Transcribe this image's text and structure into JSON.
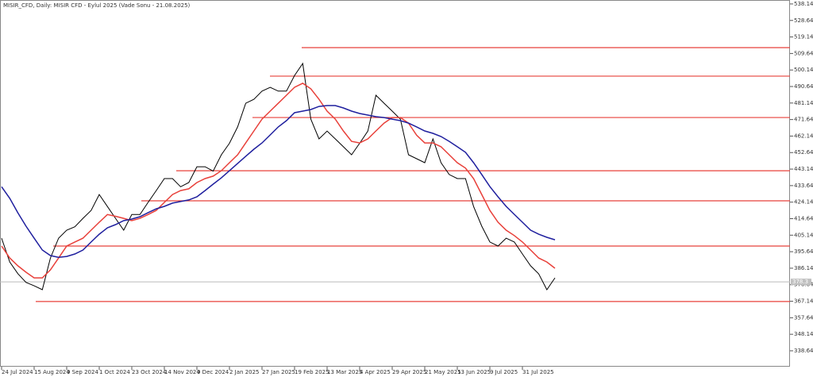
{
  "chart_data": {
    "type": "line",
    "title": "MISIR_CFD, Daily: MISIR CFD - Eylul 2025 (Vade Sonu - 21.08.2025)",
    "categories": [
      "24 Jul 2024",
      null,
      null,
      null,
      "15 Aug 2024",
      null,
      null,
      null,
      "9 Sep 2024",
      null,
      null,
      null,
      "1 Oct 2024",
      null,
      null,
      null,
      "23 Oct 2024",
      null,
      null,
      null,
      "14 Nov 2024",
      null,
      null,
      null,
      "9 Dec 2024",
      null,
      null,
      null,
      "2 Jan 2025",
      null,
      null,
      null,
      "27 Jan 2025",
      null,
      null,
      null,
      "19 Feb 2025",
      null,
      null,
      null,
      "13 Mar 2025",
      null,
      null,
      null,
      "4 Apr 2025",
      null,
      null,
      null,
      "29 Apr 2025",
      null,
      null,
      null,
      "21 May 2025",
      null,
      null,
      null,
      "13 Jun 2025",
      null,
      null,
      null,
      "9 Jul 2025",
      null,
      null,
      null,
      "31 Jul 2025",
      null,
      null,
      null,
      null
    ],
    "series": [
      {
        "color": "#000000",
        "values": [
          403.4,
          389.7,
          383,
          378,
          376,
          373.8,
          392,
          403.4,
          408,
          410,
          414.8,
          419.4,
          428.5,
          421.6,
          414.8,
          408,
          417,
          417,
          424,
          430.8,
          437.7,
          437.7,
          433,
          435.4,
          444.5,
          444.5,
          442,
          451.4,
          458,
          467.4,
          481,
          483.3,
          488,
          490.2,
          488,
          488,
          497,
          503.9,
          471.9,
          460.5,
          465,
          460.5,
          456,
          451.4,
          458,
          465,
          485.6,
          481,
          476.5,
          471.9,
          451.4,
          449.1,
          446.8,
          460.5,
          446.8,
          440,
          437.7,
          437.7,
          421.6,
          410.3,
          401.2,
          398.9,
          403.4,
          401.2,
          394.3,
          387.5,
          382.9,
          373.8,
          380.6
        ]
      },
      {
        "color": "#e8403a",
        "values": [
          398.9,
          392,
          387.5,
          383.8,
          380.6,
          380.6,
          385.2,
          392,
          398.9,
          401.2,
          403.4,
          408,
          412.6,
          417,
          416,
          414.8,
          413.5,
          414.8,
          417,
          419.4,
          424,
          428.5,
          430.8,
          431.8,
          435.4,
          437.7,
          439.1,
          442.2,
          446.8,
          451.4,
          458.2,
          465.1,
          471.9,
          476.5,
          481,
          485.6,
          490.2,
          492.5,
          489.3,
          483.3,
          476.5,
          471.9,
          465.1,
          459.1,
          458.2,
          460.5,
          465.1,
          469.6,
          472.8,
          472.8,
          469.6,
          462.6,
          458.2,
          458.2,
          456,
          451.4,
          446.8,
          443.7,
          437.7,
          428.5,
          419.4,
          412.6,
          408,
          404.9,
          401.2,
          396.6,
          392,
          389.7,
          386.1
        ]
      },
      {
        "color": "#1f1f9e",
        "values": [
          433,
          426.3,
          418,
          410.3,
          403.4,
          396.6,
          393.4,
          392.4,
          392.9,
          394.3,
          396.6,
          401.2,
          405.7,
          409.4,
          411.2,
          413.5,
          414.4,
          415.8,
          418.1,
          420.3,
          421.7,
          423.6,
          424.5,
          425.4,
          427.2,
          430.8,
          434.5,
          438.1,
          442.2,
          446.4,
          450.5,
          454.6,
          458.2,
          462.8,
          467.4,
          471,
          475.6,
          476.5,
          477.4,
          479.2,
          479.7,
          479.7,
          478.3,
          476.5,
          475.1,
          474.2,
          473.3,
          472.8,
          471.9,
          471,
          469.6,
          467.4,
          465.1,
          463.7,
          461.9,
          459.1,
          456,
          452.8,
          446.8,
          440,
          433.1,
          427.2,
          421.7,
          417.1,
          412.6,
          408,
          405.7,
          403.9,
          402.5
        ]
      }
    ],
    "levels": [
      513,
      496.6,
      472.8,
      442.2,
      424.9,
      398.9,
      367
    ],
    "level_color": "#e8403a",
    "current_price": 378.3,
    "ylim": [
      329.5,
      540.4
    ],
    "yticks": [
      538.14,
      528.64,
      519.14,
      509.64,
      500.14,
      490.64,
      481.14,
      471.64,
      462.14,
      452.64,
      443.14,
      433.64,
      424.14,
      414.64,
      405.14,
      395.64,
      386.14,
      376.64,
      367.14,
      357.64,
      348.14,
      338.64
    ]
  }
}
